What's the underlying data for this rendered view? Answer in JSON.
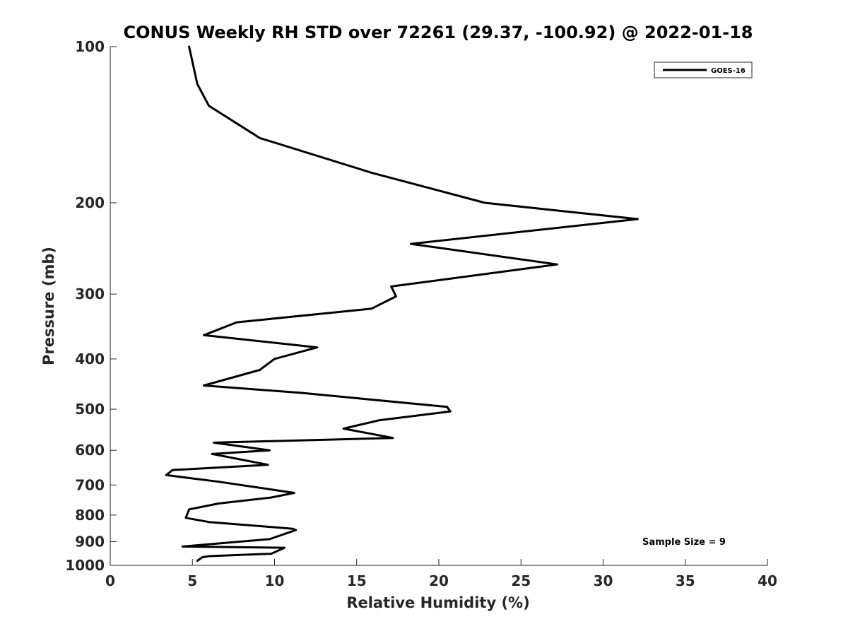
{
  "chart_data": {
    "type": "line",
    "title": "CONUS Weekly RH STD over 72261 (29.37, -100.92) @ 2022-01-18",
    "xlabel": "Relative Humidity (%)",
    "ylabel": "Pressure (mb)",
    "xlim": [
      0,
      40
    ],
    "ylim": [
      100,
      1000
    ],
    "yscale": "log",
    "y_reversed": true,
    "xticks": [
      0,
      5,
      10,
      15,
      20,
      25,
      30,
      35,
      40
    ],
    "yticks": [
      100,
      200,
      300,
      400,
      500,
      600,
      700,
      800,
      900,
      1000
    ],
    "grid": false,
    "legend_position": "top-right",
    "annotation": "Sample Size = 9",
    "series": [
      {
        "name": "GOES-16",
        "color": "#000000",
        "x": [
          5.3,
          5.6,
          6.0,
          9.8,
          10.6,
          4.4,
          9.7,
          11.3,
          11.1,
          6.0,
          4.6,
          4.8,
          6.6,
          9.8,
          11.2,
          6.6,
          3.4,
          3.8,
          9.6,
          6.2,
          9.7,
          6.3,
          17.2,
          14.2,
          16.4,
          20.7,
          20.5,
          11.6,
          5.7,
          9.1,
          10.0,
          12.6,
          5.7,
          7.7,
          15.9,
          17.4,
          17.1,
          27.2,
          18.3,
          32.1,
          22.8,
          15.9,
          9.1,
          6.0,
          5.3,
          4.8
        ],
        "y": [
          980,
          965,
          960,
          950,
          925,
          920,
          890,
          855,
          850,
          825,
          810,
          780,
          760,
          740,
          725,
          690,
          670,
          655,
          640,
          610,
          600,
          580,
          568,
          545,
          525,
          505,
          495,
          465,
          450,
          420,
          400,
          380,
          360,
          340,
          320,
          303,
          290,
          263,
          240,
          215,
          200,
          175,
          150,
          130,
          118,
          100
        ]
      }
    ]
  }
}
